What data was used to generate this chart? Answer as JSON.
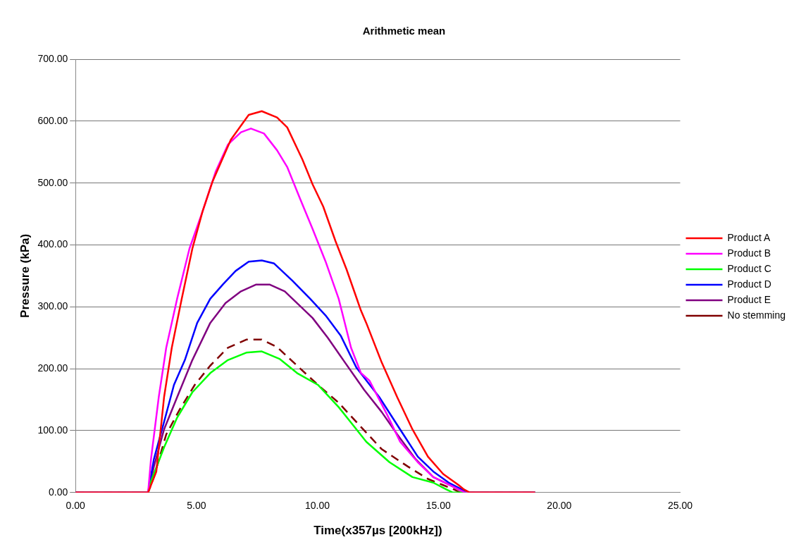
{
  "chart_data": {
    "type": "line",
    "title": "Arithmetic mean",
    "xlabel": "Time(x357µs [200kHz])",
    "ylabel": "Pressure (kPa)",
    "xlim": [
      0,
      25
    ],
    "ylim": [
      0,
      700
    ],
    "xticks": [
      {
        "value": 0,
        "label": "0.00"
      },
      {
        "value": 5,
        "label": "5.00"
      },
      {
        "value": 10,
        "label": "10.00"
      },
      {
        "value": 15,
        "label": "15.00"
      },
      {
        "value": 20,
        "label": "20.00"
      },
      {
        "value": 25,
        "label": "25.00"
      }
    ],
    "yticks": [
      {
        "value": 0,
        "label": "0.00"
      },
      {
        "value": 100,
        "label": "100.00"
      },
      {
        "value": 200,
        "label": "200.00"
      },
      {
        "value": 300,
        "label": "300.00"
      },
      {
        "value": 400,
        "label": "400.00"
      },
      {
        "value": 500,
        "label": "500.00"
      },
      {
        "value": 600,
        "label": "600.00"
      },
      {
        "value": 700,
        "label": "700.00"
      }
    ],
    "grid": "y",
    "legend": "right",
    "marker": "none",
    "series": [
      {
        "name": "Product A",
        "color": "#ff0000",
        "line_style": "solid",
        "x": [
          0,
          3.0,
          3.34,
          3.66,
          3.98,
          4.39,
          4.83,
          5.25,
          5.66,
          6.42,
          7.16,
          7.7,
          8.33,
          8.75,
          9.38,
          9.8,
          10.24,
          10.75,
          11.2,
          11.8,
          12.02,
          12.66,
          13.3,
          13.93,
          14.57,
          15.2,
          15.84,
          16.06,
          16.3,
          19
        ],
        "values": [
          0,
          0,
          34,
          154,
          234,
          313,
          394,
          454,
          502,
          570,
          610,
          616,
          606,
          590,
          538,
          498,
          462,
          406,
          361,
          294,
          274,
          210,
          154,
          102,
          58,
          30,
          12,
          5,
          0,
          0
        ]
      },
      {
        "name": "Product B",
        "color": "#ff00ff",
        "line_style": "solid",
        "x": [
          0,
          3.0,
          3.12,
          3.44,
          3.75,
          4.2,
          4.71,
          5.25,
          5.79,
          6.3,
          6.84,
          7.25,
          7.79,
          8.33,
          8.75,
          9.29,
          9.8,
          10.34,
          10.88,
          11.39,
          11.8,
          12.15,
          12.88,
          13.42,
          14.15,
          14.79,
          15.43,
          15.84,
          16.1,
          19
        ],
        "values": [
          0,
          0,
          54,
          154,
          234,
          313,
          394,
          454,
          518,
          562,
          582,
          588,
          580,
          553,
          526,
          474,
          426,
          373,
          313,
          234,
          193,
          181,
          126,
          82,
          49,
          25,
          13,
          5,
          0,
          0
        ]
      },
      {
        "name": "Product C",
        "color": "#00ff00",
        "line_style": "solid",
        "x": [
          0,
          3.0,
          3.12,
          3.66,
          4.2,
          4.83,
          5.57,
          6.3,
          7.06,
          7.7,
          8.43,
          9.16,
          10.02,
          10.88,
          11.29,
          12.02,
          12.98,
          13.93,
          14.79,
          15.33,
          15.6,
          19
        ],
        "values": [
          0,
          0,
          18,
          73,
          121,
          162,
          193,
          214,
          226,
          228,
          216,
          193,
          174,
          138,
          118,
          82,
          49,
          25,
          16,
          5,
          0,
          0
        ]
      },
      {
        "name": "Product D",
        "color": "#0000ff",
        "line_style": "solid",
        "x": [
          0,
          3.0,
          3.24,
          3.66,
          4.07,
          4.52,
          5.03,
          5.57,
          6.11,
          6.62,
          7.16,
          7.7,
          8.21,
          8.97,
          9.7,
          10.34,
          10.97,
          11.61,
          12.56,
          13.42,
          14.15,
          14.79,
          15.43,
          15.97,
          16.2,
          19
        ],
        "values": [
          0,
          0,
          54,
          114,
          174,
          214,
          274,
          313,
          337,
          358,
          373,
          375,
          370,
          342,
          313,
          286,
          253,
          202,
          154,
          102,
          58,
          34,
          16,
          5,
          0,
          0
        ]
      },
      {
        "name": "Product E",
        "color": "#800080",
        "line_style": "solid",
        "x": [
          0,
          3.0,
          3.24,
          3.66,
          4.2,
          4.83,
          5.57,
          6.2,
          6.84,
          7.47,
          8.02,
          8.65,
          9.29,
          9.8,
          10.43,
          11.07,
          11.93,
          12.66,
          13.3,
          14.06,
          14.79,
          15.43,
          15.84,
          16.1,
          19
        ],
        "values": [
          0,
          0,
          42,
          102,
          154,
          214,
          274,
          306,
          325,
          336,
          336,
          325,
          301,
          282,
          250,
          214,
          166,
          130,
          94,
          54,
          25,
          13,
          5,
          0,
          0
        ]
      },
      {
        "name": "No stemming",
        "color": "#800000",
        "line_style": "dashed",
        "x": [
          0,
          3.0,
          3.24,
          3.75,
          4.29,
          4.93,
          5.57,
          6.3,
          7.06,
          7.7,
          8.33,
          9.16,
          10.02,
          10.88,
          11.61,
          12.66,
          13.74,
          14.57,
          15.2,
          15.65,
          15.9,
          19
        ],
        "values": [
          0,
          0,
          25,
          94,
          133,
          174,
          205,
          234,
          247,
          247,
          235,
          205,
          174,
          145,
          114,
          70,
          42,
          22,
          12,
          5,
          0,
          0
        ]
      }
    ]
  }
}
